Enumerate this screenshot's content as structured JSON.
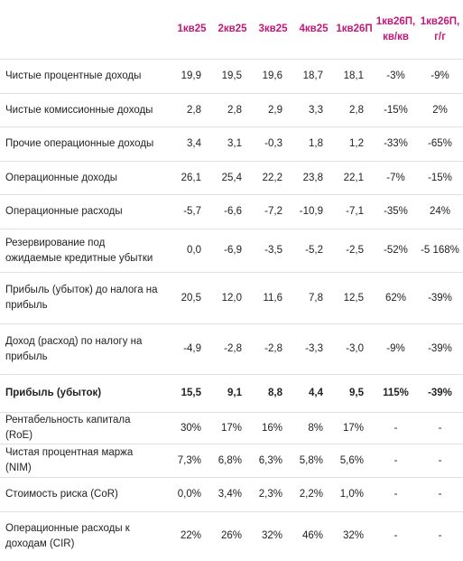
{
  "table": {
    "columns": [
      "1кв25",
      "2кв25",
      "3кв25",
      "4кв25",
      "1кв26П",
      "1кв26П, кв/кв",
      "1кв26П, г/г"
    ],
    "rows": [
      {
        "label": "Чистые процентные доходы",
        "cells": [
          "19,9",
          "19,5",
          "19,6",
          "18,7",
          "18,1",
          "-3%",
          "-9%"
        ]
      },
      {
        "label": "Чистые комиссионные доходы",
        "cells": [
          "2,8",
          "2,8",
          "2,9",
          "3,3",
          "2,8",
          "-15%",
          "2%"
        ]
      },
      {
        "label": "Прочие операционные доходы",
        "cells": [
          "3,4",
          "3,1",
          "-0,3",
          "1,8",
          "1,2",
          "-33%",
          "-65%"
        ]
      },
      {
        "label": "Операционные доходы",
        "cells": [
          "26,1",
          "25,4",
          "22,2",
          "23,8",
          "22,1",
          "-7%",
          "-15%"
        ]
      },
      {
        "label": "Операционные расходы",
        "cells": [
          "-5,7",
          "-6,6",
          "-7,2",
          "-10,9",
          "-7,1",
          "-35%",
          "24%"
        ]
      },
      {
        "label": "Резервирование под ожидаемые кредитные убытки",
        "cells": [
          "0,0",
          "-6,9",
          "-3,5",
          "-5,2",
          "-2,5",
          "-52%",
          "-5 168%"
        ]
      },
      {
        "label": "Прибыль (убыток) до налога на прибыль",
        "cells": [
          "20,5",
          "12,0",
          "11,6",
          "7,8",
          "12,5",
          "62%",
          "-39%"
        ]
      },
      {
        "label": "Доход (расход) по налогу на прибыль",
        "cells": [
          "-4,9",
          "-2,8",
          "-2,8",
          "-3,3",
          "-3,0",
          "-9%",
          "-39%"
        ]
      },
      {
        "label": "Прибыль (убыток)",
        "cells": [
          "15,5",
          "9,1",
          "8,8",
          "4,4",
          "9,5",
          "115%",
          "-39%"
        ]
      },
      {
        "label": "Рентабельность капитала (RoE)",
        "cells": [
          "30%",
          "17%",
          "16%",
          "8%",
          "17%",
          "-",
          "-"
        ]
      },
      {
        "label": "Чистая процентная маржа (NIM)",
        "cells": [
          "7,3%",
          "6,8%",
          "6,3%",
          "5,8%",
          "5,6%",
          "-",
          "-"
        ]
      },
      {
        "label": "Стоимость риска (CoR)",
        "cells": [
          "0,0%",
          "3,4%",
          "2,3%",
          "2,2%",
          "1,0%",
          "-",
          "-"
        ]
      },
      {
        "label": "Операционные расходы к доходам (CIR)",
        "cells": [
          "22%",
          "26%",
          "32%",
          "46%",
          "32%",
          "-",
          "-"
        ]
      }
    ]
  }
}
